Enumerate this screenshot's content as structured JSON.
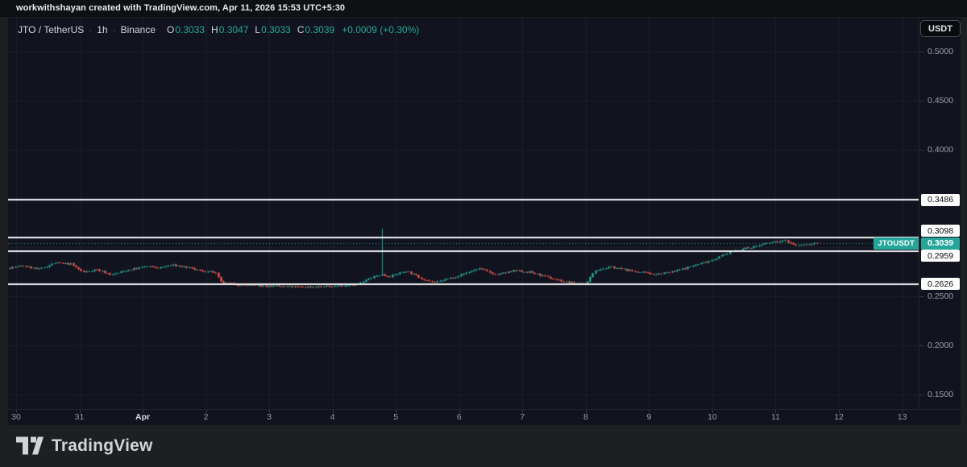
{
  "watermark": {
    "text": "workwithshayan created with TradingView.com, Apr 11, 2026 15:53 UTC+5:30"
  },
  "header": {
    "symbol": "JTO / TetherUS",
    "sep": "·",
    "interval": "1h",
    "exchange": "Binance",
    "o_label": "O",
    "o_value": "0.3033",
    "h_label": "H",
    "h_value": "0.3047",
    "l_label": "L",
    "l_value": "0.3033",
    "c_label": "C",
    "c_value": "0.3039",
    "change": "+0.0009 (+0.30%)"
  },
  "toolbar": {
    "currency_label": "USDT"
  },
  "footer": {
    "brand": "TradingView"
  },
  "colors": {
    "up": "#26a69a",
    "down": "#ef5350",
    "grid": "#1b1f2b",
    "chart_bg": "#11141e",
    "line_white": "#f4f5f7",
    "dotted_line": "#2f9e92",
    "axis_text": "#9b9fa8",
    "label_box_bg": "#fdfdfe",
    "last_price_bg": "#26a69a"
  },
  "chart_data": {
    "type": "candlestick",
    "symbol_badge": "JTOUSDT",
    "exchange": "Binance",
    "interval": "1h",
    "last_price": 0.3039,
    "last_price_label": "0.3039",
    "y_domain": [
      0.134868,
      0.534539
    ],
    "x_domain_days": [
      -0.127,
      14.26
    ],
    "x_axis_note": "day 0 = Mar 30, 1 unit = 1 day",
    "y_ticks": [
      {
        "price": 0.5,
        "label": "0.5000"
      },
      {
        "price": 0.45,
        "label": "0.4500"
      },
      {
        "price": 0.4,
        "label": "0.4000"
      },
      {
        "price": 0.25,
        "label": "0.2500"
      },
      {
        "price": 0.2,
        "label": "0.2000"
      },
      {
        "price": 0.15,
        "label": "0.1500"
      }
    ],
    "grid_prices": [
      0.5,
      0.45,
      0.4,
      0.35,
      0.3,
      0.25,
      0.2,
      0.15
    ],
    "x_ticks": [
      {
        "day": 0,
        "label": "30"
      },
      {
        "day": 1,
        "label": "31"
      },
      {
        "day": 2,
        "label": "Apr",
        "emphasis": true
      },
      {
        "day": 3,
        "label": "2"
      },
      {
        "day": 4,
        "label": "3"
      },
      {
        "day": 5,
        "label": "4"
      },
      {
        "day": 6,
        "label": "5"
      },
      {
        "day": 7,
        "label": "6"
      },
      {
        "day": 8,
        "label": "7"
      },
      {
        "day": 9,
        "label": "8"
      },
      {
        "day": 10,
        "label": "9"
      },
      {
        "day": 11,
        "label": "10"
      },
      {
        "day": 12,
        "label": "11"
      },
      {
        "day": 13,
        "label": "12"
      },
      {
        "day": 14,
        "label": "13"
      }
    ],
    "price_lines": [
      {
        "price": 0.3486,
        "label": "0.3486"
      },
      {
        "price": 0.3098,
        "label": "0.3098"
      },
      {
        "price": 0.2959,
        "label": "0.2959"
      },
      {
        "price": 0.2626,
        "label": "0.2626"
      }
    ],
    "price_path": [
      [
        -0.1,
        0.279
      ],
      [
        0.15,
        0.281
      ],
      [
        0.4,
        0.2775
      ],
      [
        0.65,
        0.284
      ],
      [
        0.9,
        0.283
      ],
      [
        1.1,
        0.2745
      ],
      [
        1.3,
        0.2775
      ],
      [
        1.55,
        0.272
      ],
      [
        1.8,
        0.2768
      ],
      [
        2.1,
        0.2805
      ],
      [
        2.3,
        0.279
      ],
      [
        2.5,
        0.282
      ],
      [
        2.7,
        0.28
      ],
      [
        2.95,
        0.276
      ],
      [
        3.18,
        0.2745
      ],
      [
        3.28,
        0.264
      ],
      [
        3.6,
        0.2615
      ],
      [
        4.0,
        0.2605
      ],
      [
        4.5,
        0.2595
      ],
      [
        5.0,
        0.26
      ],
      [
        5.45,
        0.2625
      ],
      [
        5.65,
        0.269
      ],
      [
        5.78,
        0.2718
      ],
      [
        5.95,
        0.2705
      ],
      [
        6.2,
        0.276
      ],
      [
        6.45,
        0.268
      ],
      [
        6.65,
        0.264
      ],
      [
        7.0,
        0.2705
      ],
      [
        7.35,
        0.2785
      ],
      [
        7.62,
        0.272
      ],
      [
        7.9,
        0.276
      ],
      [
        8.15,
        0.2748
      ],
      [
        8.45,
        0.269
      ],
      [
        8.75,
        0.2642
      ],
      [
        9.05,
        0.2628
      ],
      [
        9.18,
        0.277
      ],
      [
        9.45,
        0.2798
      ],
      [
        9.75,
        0.276
      ],
      [
        10.1,
        0.2726
      ],
      [
        10.4,
        0.2748
      ],
      [
        10.7,
        0.2805
      ],
      [
        11.05,
        0.2875
      ],
      [
        11.35,
        0.2962
      ],
      [
        11.7,
        0.3008
      ],
      [
        11.98,
        0.3052
      ],
      [
        12.2,
        0.3068
      ],
      [
        12.36,
        0.3018
      ],
      [
        12.52,
        0.3028
      ],
      [
        12.66,
        0.3039
      ]
    ],
    "spike": {
      "day": 5.77,
      "high": 0.319
    },
    "candles": {
      "start_day": -0.1,
      "end_day": 12.66,
      "hours_per_candle": 1,
      "seed": 7,
      "close_noise": 0.0009,
      "wick_noise": 0.0007
    }
  }
}
